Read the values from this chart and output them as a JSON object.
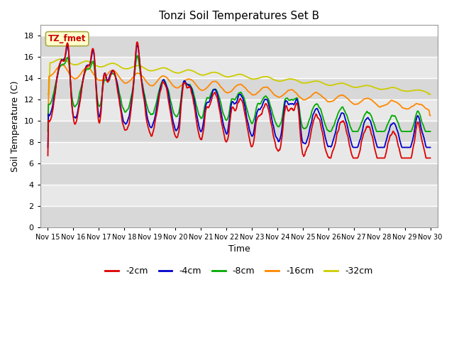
{
  "title": "Tonzi Soil Temperatures Set B",
  "xlabel": "Time",
  "ylabel": "Soil Temperature (C)",
  "ylim": [
    0,
    19
  ],
  "yticks": [
    0,
    2,
    4,
    6,
    8,
    10,
    12,
    14,
    16,
    18
  ],
  "legend_labels": [
    "-2cm",
    "-4cm",
    "-8cm",
    "-16cm",
    "-32cm"
  ],
  "legend_colors": [
    "#dd0000",
    "#0000cc",
    "#00aa00",
    "#ff8800",
    "#cccc00"
  ],
  "annotation_text": "TZ_fmet",
  "annotation_bg": "#ffffcc",
  "annotation_border": "#aaaa44",
  "fig_bg": "#ffffff",
  "plot_bg_light": "#e8e8e8",
  "plot_bg_dark": "#d0d0d0",
  "figsize": [
    6.4,
    4.8
  ],
  "dpi": 100
}
